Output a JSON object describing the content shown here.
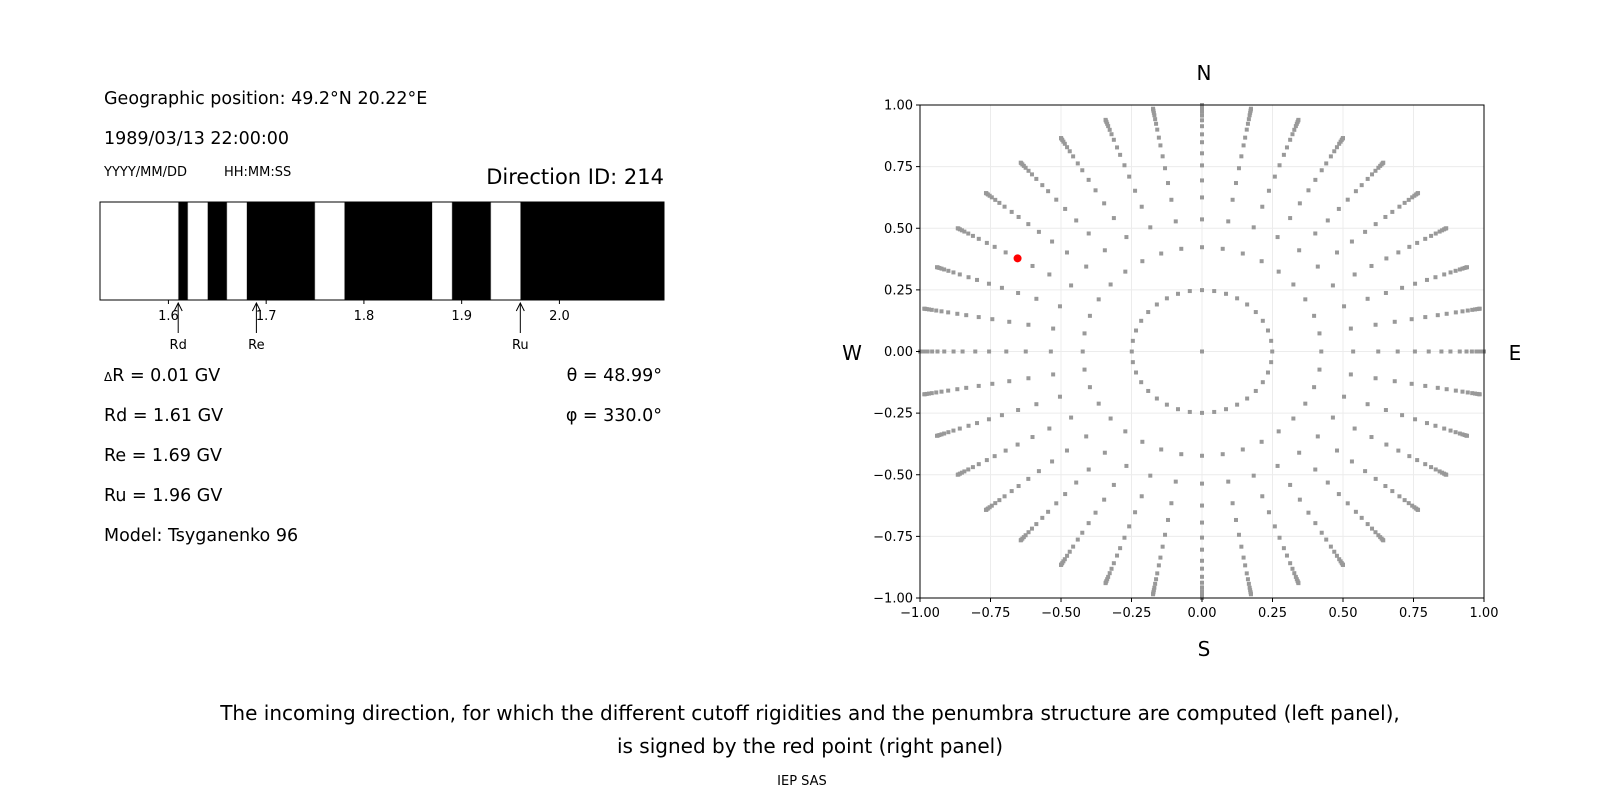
{
  "left_panel": {
    "geo_position": "Geographic position: 49.2°N 20.22°E",
    "datetime": "1989/03/13 22:00:00",
    "date_format": "YYYY/MM/DD",
    "time_format": "HH:MM:SS",
    "direction_id": "Direction ID: 214",
    "delta_r_symbol": "Δ",
    "delta_r": "R = 0.01 GV",
    "rd": "Rd = 1.61 GV",
    "re": "Re = 1.69 GV",
    "ru": "Ru = 1.96 GV",
    "model": "Model: Tsyganenko 96",
    "theta": "θ = 48.99°",
    "phi": "φ = 330.0°"
  },
  "right_panel": {
    "north": "N",
    "south": "S",
    "west": "W",
    "east": "E"
  },
  "caption": {
    "line1": "The incoming direction, for which the different cutoff rigidities and the penumbra structure are computed (left panel),",
    "line2": "is signed by the red point (right panel)",
    "credit": "IEP SAS"
  },
  "chart_data": [
    {
      "type": "bar",
      "description_kind": "penumbra",
      "xlim": [
        1.53,
        2.107
      ],
      "xticks": [
        "1.6",
        "1.7",
        "1.8",
        "1.9",
        "2.0"
      ],
      "xtick_values": [
        1.6,
        1.7,
        1.8,
        1.9,
        2.0
      ],
      "background_color": "#000000",
      "band_color": "#ffffff",
      "white_intervals": [
        [
          1.53,
          1.61
        ],
        [
          1.62,
          1.64
        ],
        [
          1.66,
          1.68
        ],
        [
          1.75,
          1.78
        ],
        [
          1.87,
          1.89
        ],
        [
          1.93,
          1.96
        ]
      ],
      "markers": [
        {
          "label": "Rd",
          "value": 1.61
        },
        {
          "label": "Re",
          "value": 1.69
        },
        {
          "label": "Ru",
          "value": 1.96
        }
      ]
    },
    {
      "type": "scatter",
      "xlim": [
        -1.0,
        1.0
      ],
      "ylim": [
        -1.0,
        1.0
      ],
      "xticks": [
        "−1.00",
        "−0.75",
        "−0.50",
        "−0.25",
        "0.00",
        "0.25",
        "0.50",
        "0.75",
        "1.00"
      ],
      "yticks": [
        "−1.00",
        "−0.75",
        "−0.50",
        "−0.25",
        "0.00",
        "0.25",
        "0.50",
        "0.75",
        "1.00"
      ],
      "tick_values": [
        -1.0,
        -0.75,
        -0.5,
        -0.25,
        0.0,
        0.25,
        0.5,
        0.75,
        1.0
      ],
      "grid": true,
      "grid_points": {
        "color": "#999999",
        "azimuths_deg": [
          0,
          10,
          20,
          30,
          40,
          50,
          60,
          70,
          80,
          90,
          100,
          110,
          120,
          130,
          140,
          150,
          160,
          170,
          180,
          190,
          200,
          210,
          220,
          230,
          240,
          250,
          260,
          270,
          280,
          290,
          300,
          310,
          320,
          330,
          340,
          350
        ],
        "radii": [
          0.249,
          0.423,
          0.536,
          0.625,
          0.694,
          0.755,
          0.804,
          0.849,
          0.881,
          0.914,
          0.938,
          0.957,
          0.973,
          0.983,
          0.991,
          0.997,
          1.0
        ],
        "center": [
          0.0,
          0.0
        ]
      },
      "highlight_point": {
        "x": -0.654,
        "y": 0.378,
        "color": "#ff0000"
      }
    }
  ]
}
